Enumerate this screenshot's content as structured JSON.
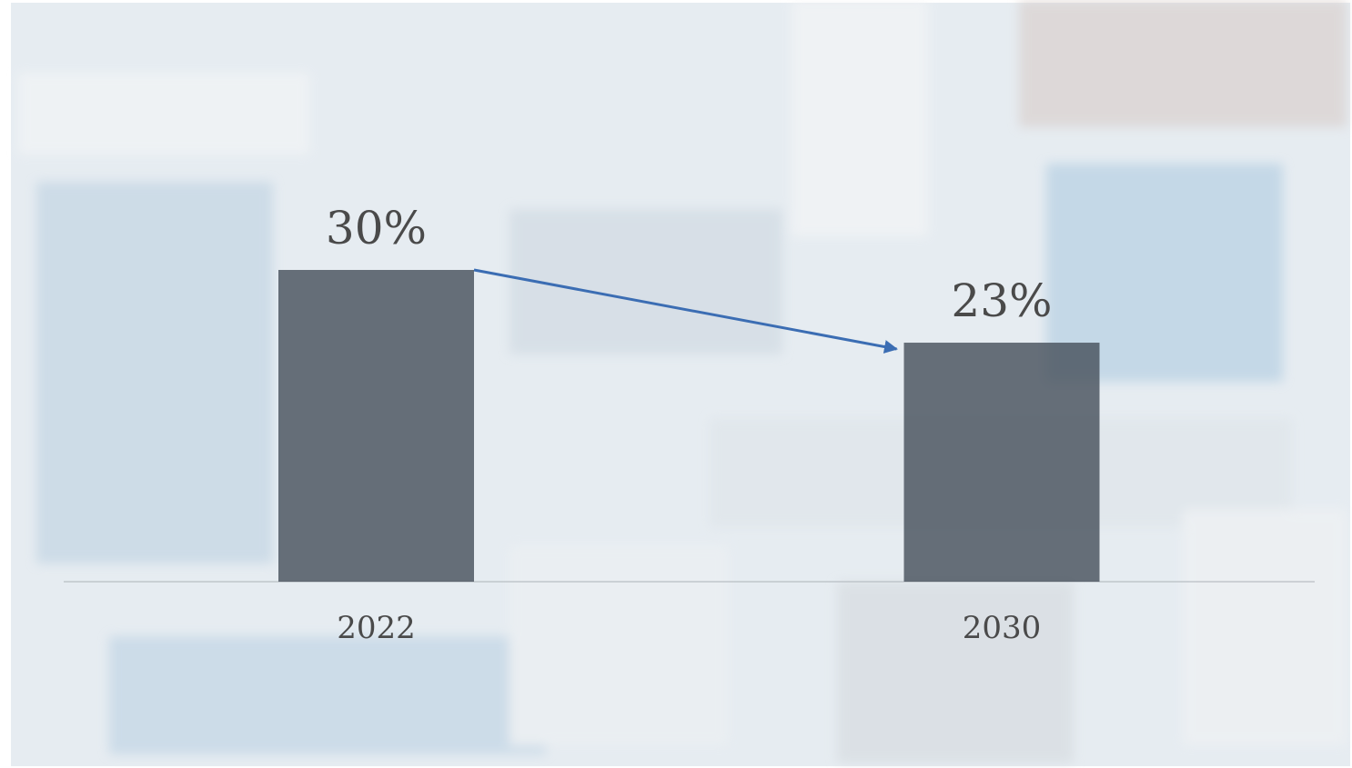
{
  "chart_data": {
    "type": "bar",
    "categories": [
      "2022",
      "2030"
    ],
    "values": [
      30,
      23
    ],
    "value_labels": [
      "30%",
      "23%"
    ],
    "color": "#48525d"
  }
}
